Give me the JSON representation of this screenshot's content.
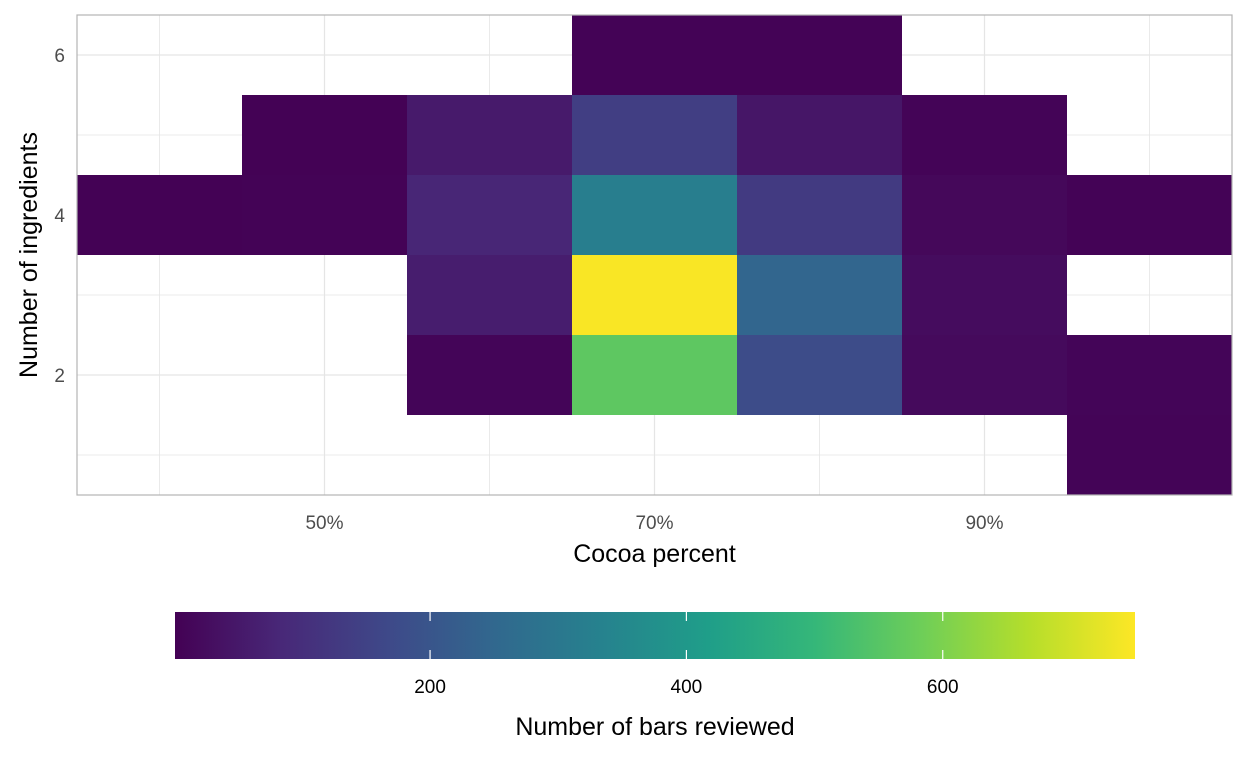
{
  "chart_data": {
    "type": "heatmap",
    "title": "",
    "xlabel": "Cocoa percent",
    "ylabel": "Number of ingredients",
    "x_format": "percent",
    "xlim": [
      0.35,
      1.05
    ],
    "ylim": [
      0.5,
      6.5
    ],
    "x_ticks": [
      {
        "value": 0.5,
        "label": "50%"
      },
      {
        "value": 0.7,
        "label": "70%"
      },
      {
        "value": 0.9,
        "label": "90%"
      }
    ],
    "y_ticks": [
      {
        "value": 2,
        "label": "2"
      },
      {
        "value": 4,
        "label": "4"
      },
      {
        "value": 6,
        "label": "6"
      }
    ],
    "bin_width_x": 0.1,
    "bin_height_y": 1,
    "grid": true,
    "fill_scale": "viridis",
    "fill_range": [
      1,
      750
    ],
    "legend": {
      "title": "Number of bars reviewed",
      "position": "bottom",
      "breaks": [
        200,
        400,
        600
      ]
    },
    "cells": [
      {
        "x": 0.4,
        "y": 4,
        "value": 3
      },
      {
        "x": 0.5,
        "y": 4,
        "value": 5
      },
      {
        "x": 0.5,
        "y": 5,
        "value": 4
      },
      {
        "x": 0.6,
        "y": 2,
        "value": 10
      },
      {
        "x": 0.6,
        "y": 3,
        "value": 60
      },
      {
        "x": 0.6,
        "y": 4,
        "value": 80
      },
      {
        "x": 0.6,
        "y": 5,
        "value": 55
      },
      {
        "x": 0.7,
        "y": 2,
        "value": 560
      },
      {
        "x": 0.7,
        "y": 3,
        "value": 745
      },
      {
        "x": 0.7,
        "y": 4,
        "value": 320
      },
      {
        "x": 0.7,
        "y": 5,
        "value": 140
      },
      {
        "x": 0.7,
        "y": 6,
        "value": 5
      },
      {
        "x": 0.8,
        "y": 2,
        "value": 175
      },
      {
        "x": 0.8,
        "y": 3,
        "value": 245
      },
      {
        "x": 0.8,
        "y": 4,
        "value": 130
      },
      {
        "x": 0.8,
        "y": 5,
        "value": 45
      },
      {
        "x": 0.8,
        "y": 6,
        "value": 6
      },
      {
        "x": 0.9,
        "y": 2,
        "value": 20
      },
      {
        "x": 0.9,
        "y": 3,
        "value": 25
      },
      {
        "x": 0.9,
        "y": 4,
        "value": 15
      },
      {
        "x": 0.9,
        "y": 5,
        "value": 8
      },
      {
        "x": 1.0,
        "y": 1,
        "value": 8
      },
      {
        "x": 1.0,
        "y": 2,
        "value": 10
      },
      {
        "x": 1.0,
        "y": 4,
        "value": 6
      }
    ]
  }
}
